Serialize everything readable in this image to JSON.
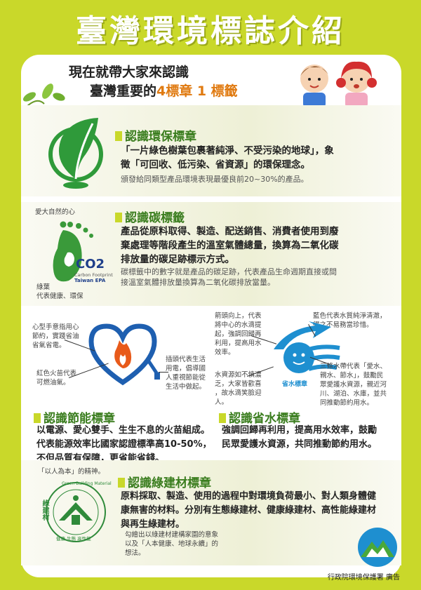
{
  "page": {
    "title": "臺灣環境標誌介紹"
  },
  "intro": {
    "line1": "現在就帶大家來認識",
    "line2_prefix": "臺灣重要的",
    "line2_highlight": "4標章 1 標籤"
  },
  "eco": {
    "title": "認識環保標章",
    "desc1": "「一片綠色樹葉包裹著純淨、不受污染的地球」，象",
    "desc2": "徵「可回收、低污染、省資源」的環保理念。",
    "note": "頒發給同類型產品環境表現最優良前20~30%的產品。"
  },
  "carbon": {
    "title": "認識碳標籤",
    "label_heart": "愛大自然的心",
    "label_green1": "綠葉",
    "label_green2": "代表健康、環保",
    "co2": "CO2",
    "logo_sub1": "Carbon Footprint",
    "logo_sub2": "Taiwan EPA",
    "desc1": "產品從原料取得、製造、配送銷售、消費者使用到廢",
    "desc2": "棄處理等階段產生的溫室氣體總量，換算為二氧化碳",
    "desc3": "排放量的碳足跡標示方式。",
    "note1": "碳標籤中的數字就是產品的碳足跡，代表產品生命週期直接或間",
    "note2": "接溫室氣體排放量換算為二氧化碳排放當量。"
  },
  "energy": {
    "title": "認識節能標章",
    "label_heart": [
      "心型手意指用心",
      "節約，實踐省油",
      "省氣省電。"
    ],
    "label_flame": [
      "紅色火苗代表",
      "可燃油氣。"
    ],
    "label_plug": [
      "插頭代表生活",
      "用電，倡導國",
      "人重視節能從",
      "生活中做起。"
    ],
    "desc1": "以電源、愛心雙手、生生不息的火苗組成。",
    "desc2": "代表能源效率比國家認證標準高10-50%，",
    "desc3": "不但品質有保障，更省能省錢。"
  },
  "water": {
    "title": "認識省水標章",
    "label_arrow": [
      "箭頭向上，代表",
      "將中心的水滴提",
      "起，強調回歸再",
      "利用，提高用水",
      "效率。"
    ],
    "label_blue": [
      "藍色代表水質純淨清澈，",
      "得之不易務當珍惜。"
    ],
    "label_drops": [
      "水資源如不慎濃",
      "乏，大家皆歡喜",
      "，故水滴笑臉迎",
      "人。"
    ],
    "label_waves": [
      "三條水帶代表「愛水、",
      "親水、節水」，鼓勵民",
      "眾愛護水資源，親近河",
      "川、湖泊、水庫，並共",
      "同推動節約用水。"
    ],
    "logo_text": "省水標章",
    "desc1": "強調回歸再利用，提高用水效率，鼓勵",
    "desc2": "民眾愛護水資源，共同推動節約用水。"
  },
  "green": {
    "title": "認識綠建材標章",
    "label_people": "「以人為本」的精神。",
    "label_bottom": [
      "勾繪出以綠建材建構家園的意象",
      "以及「人本健康、地球永續」的",
      "想法。"
    ],
    "logo_cn": "綠建材",
    "logo_en": "Green Building Material",
    "logo_bottom": "健康 生態 高性能",
    "desc1": "原料採取、製造、使用的過程中對環境負荷最小、對人類身體健",
    "desc2": "康無害的材料。分別有生態綠建材、健康綠建材、高性能綠建材",
    "desc3": "與再生綠建材。"
  },
  "footer": {
    "credit": "行政院環境保護署 廣告"
  },
  "colors": {
    "background": "#c9d82a",
    "section_title": "#3a7d1e",
    "eco_green": "#2f9a3a",
    "water_blue": "#1e8fd0",
    "energy_red": "#e03a2a",
    "energy_blue": "#1e5fb0"
  }
}
